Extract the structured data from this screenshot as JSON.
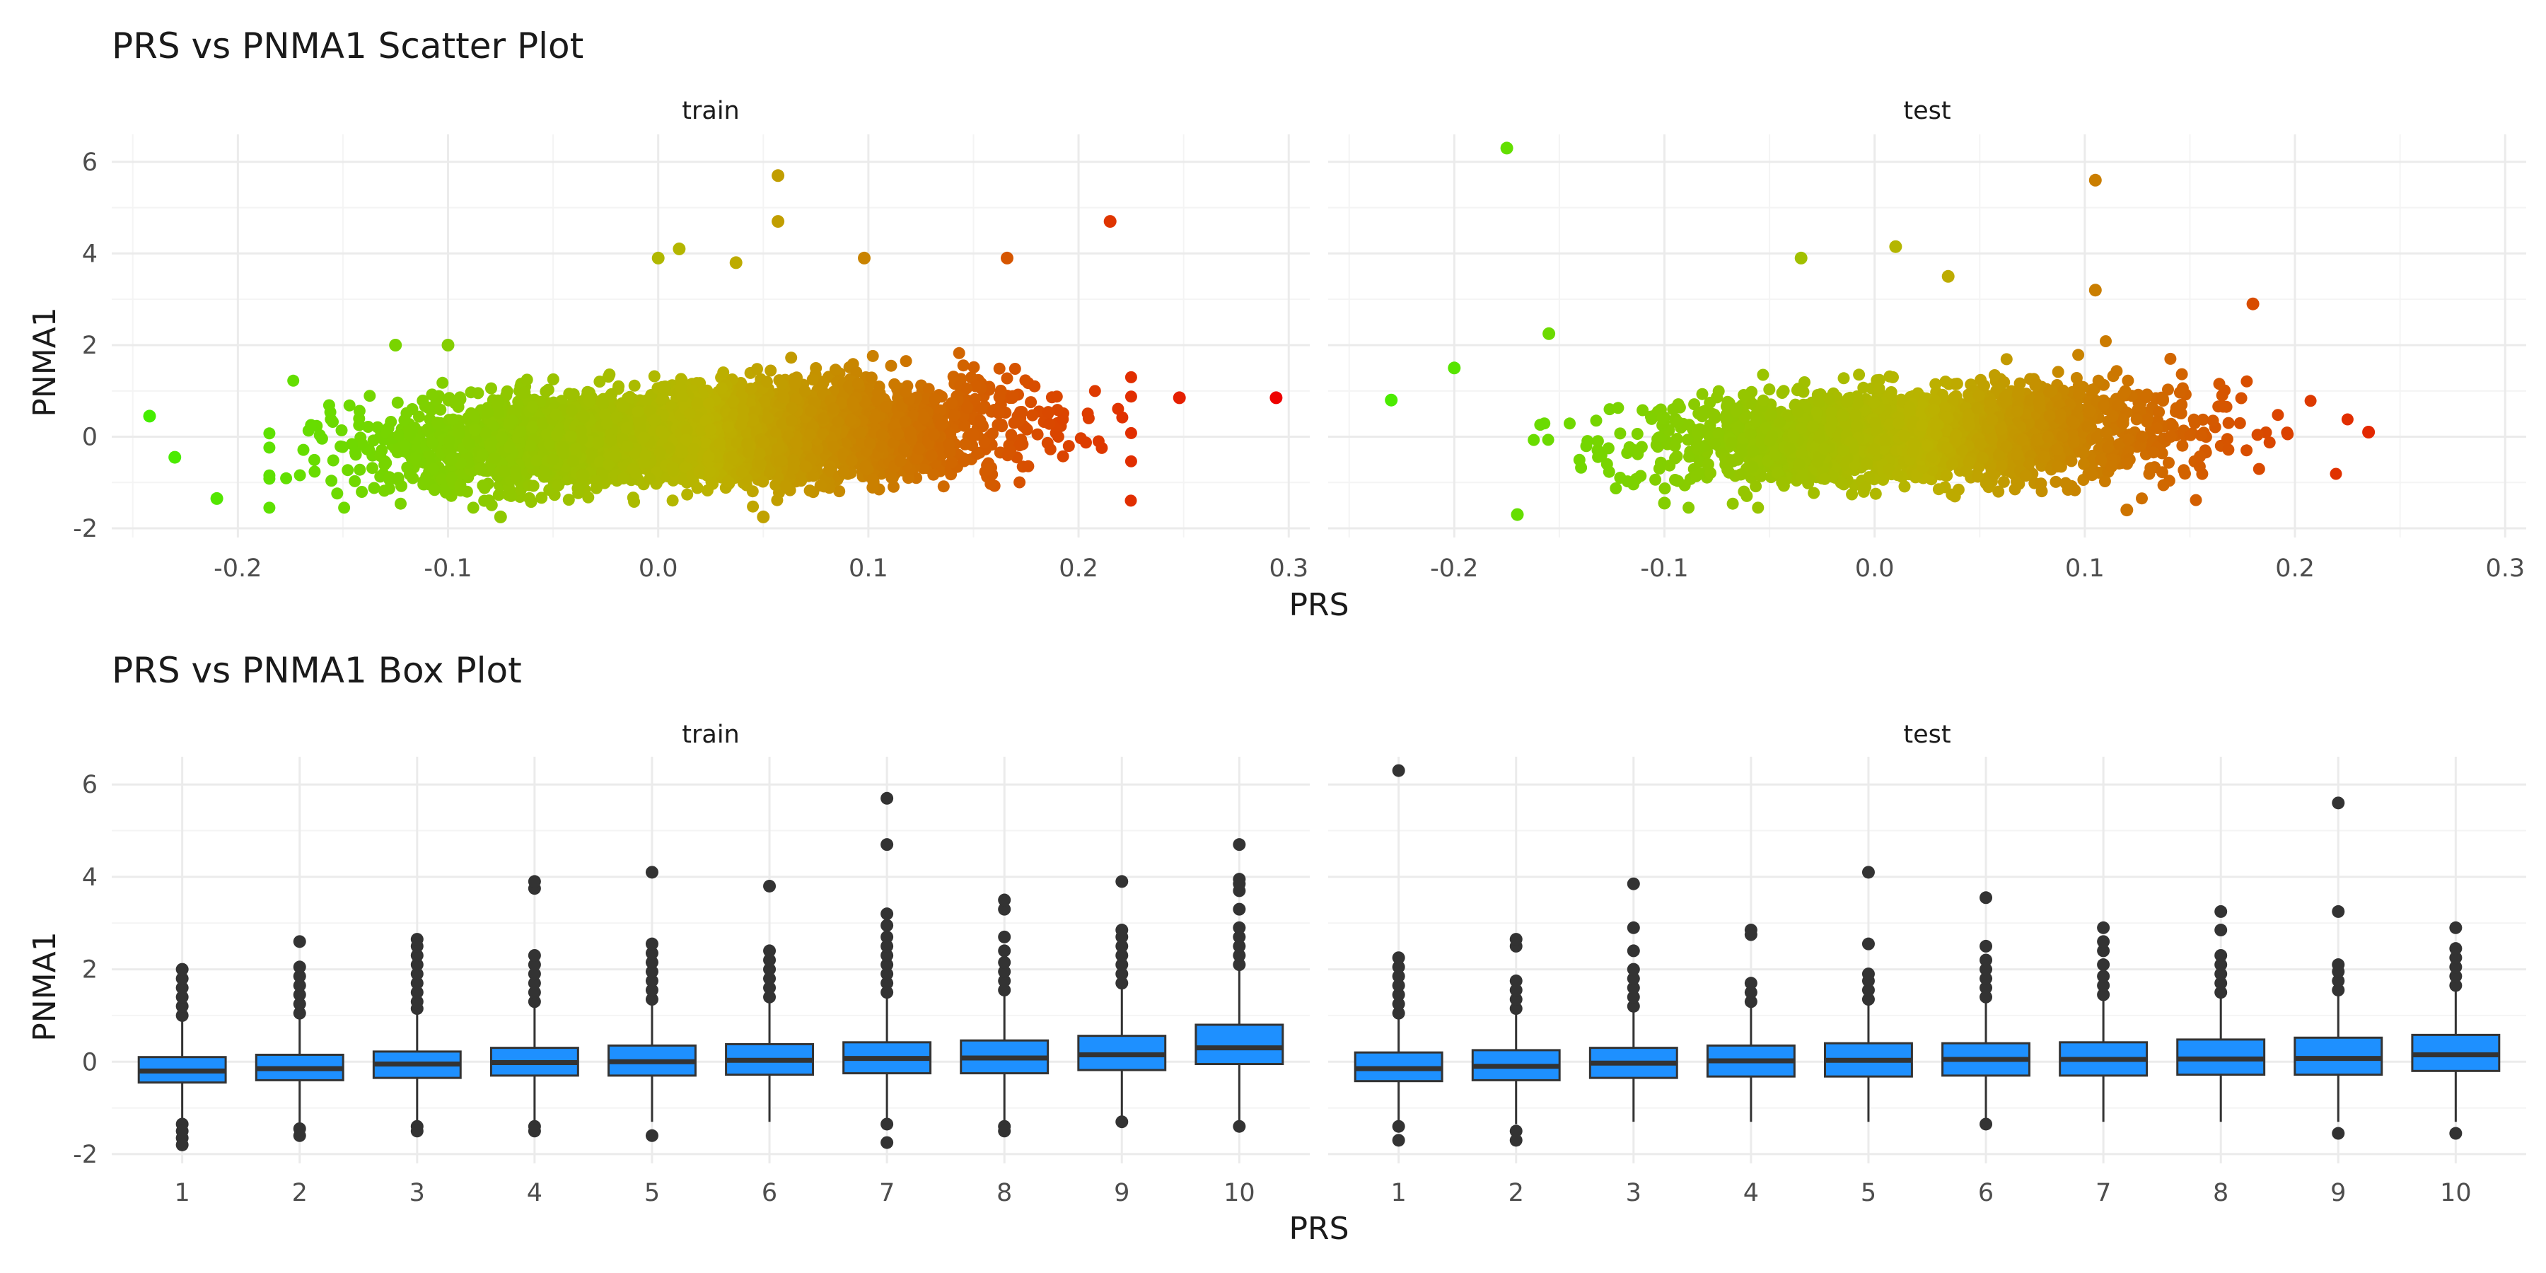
{
  "chart_data": [
    {
      "type": "scatter",
      "title": "PRS vs PNMA1 Scatter Plot",
      "xlabel": "PRS",
      "ylabel": "PNMA1",
      "facets": [
        "train",
        "test"
      ],
      "xlim": [
        -0.26,
        0.31
      ],
      "ylim": [
        -2.2,
        6.6
      ],
      "x_ticks": [
        "-0.2",
        "-0.1",
        "0.0",
        "0.1",
        "0.2",
        "0.3"
      ],
      "y_ticks": [
        "-2",
        "0",
        "2",
        "4",
        "6"
      ],
      "grid": true,
      "legend": "none",
      "color_scale": {
        "low": "#44ee00",
        "mid": "#bbb300",
        "high": "#ee0000",
        "mapped_to": "PRS"
      },
      "notable_points": {
        "train": [
          {
            "x": -0.242,
            "y": 0.45
          },
          {
            "x": -0.23,
            "y": -0.45
          },
          {
            "x": -0.21,
            "y": -1.35
          },
          {
            "x": 0.057,
            "y": 5.7
          },
          {
            "x": 0.057,
            "y": 4.7
          },
          {
            "x": 0.215,
            "y": 4.7
          },
          {
            "x": 0.294,
            "y": 0.85
          },
          {
            "x": 0.248,
            "y": 0.85
          },
          {
            "x": 0.0,
            "y": 3.9
          },
          {
            "x": 0.01,
            "y": 4.1
          },
          {
            "x": 0.098,
            "y": 3.9
          },
          {
            "x": 0.166,
            "y": 3.9
          },
          {
            "x": 0.037,
            "y": 3.8
          },
          {
            "x": -0.125,
            "y": 2.0
          },
          {
            "x": -0.1,
            "y": 2.0
          },
          {
            "x": -0.075,
            "y": -1.75
          },
          {
            "x": 0.05,
            "y": -1.75
          }
        ],
        "test": [
          {
            "x": -0.175,
            "y": 6.3
          },
          {
            "x": 0.105,
            "y": 5.6
          },
          {
            "x": 0.01,
            "y": 4.15
          },
          {
            "x": -0.035,
            "y": 3.9
          },
          {
            "x": 0.035,
            "y": 3.5
          },
          {
            "x": 0.105,
            "y": 3.2
          },
          {
            "x": 0.18,
            "y": 2.9
          },
          {
            "x": -0.23,
            "y": 0.8
          },
          {
            "x": -0.2,
            "y": 1.5
          },
          {
            "x": -0.155,
            "y": 2.25
          },
          {
            "x": 0.235,
            "y": 0.1
          },
          {
            "x": -0.17,
            "y": -1.7
          },
          {
            "x": -0.1,
            "y": -1.45
          },
          {
            "x": 0.12,
            "y": -1.6
          }
        ]
      }
    },
    {
      "type": "box",
      "title": "PRS vs PNMA1 Box Plot",
      "xlabel": "PRS",
      "ylabel": "PNMA1",
      "facets": [
        "train",
        "test"
      ],
      "categories": [
        "1",
        "2",
        "3",
        "4",
        "5",
        "6",
        "7",
        "8",
        "9",
        "10"
      ],
      "ylim": [
        -2.2,
        6.6
      ],
      "y_ticks": [
        "-2",
        "0",
        "2",
        "4",
        "6"
      ],
      "box_color": "#1e90ff",
      "grid": true,
      "legend": "none",
      "series": [
        {
          "facet": "train",
          "boxes": [
            {
              "category": "1",
              "q1": -0.45,
              "median": -0.2,
              "q3": 0.1,
              "wlow": -1.25,
              "whigh": 0.95,
              "outliers_high": [
                1.0,
                1.2,
                1.4,
                1.6,
                1.8,
                2.0
              ],
              "outliers_low": [
                -1.35,
                -1.5,
                -1.65,
                -1.8
              ]
            },
            {
              "category": "2",
              "q1": -0.4,
              "median": -0.15,
              "q3": 0.15,
              "wlow": -1.35,
              "whigh": 1.0,
              "outliers_high": [
                1.05,
                1.25,
                1.45,
                1.65,
                1.85,
                2.05,
                2.6
              ],
              "outliers_low": [
                -1.45,
                -1.6
              ]
            },
            {
              "category": "3",
              "q1": -0.35,
              "median": -0.05,
              "q3": 0.22,
              "wlow": -1.3,
              "whigh": 1.1,
              "outliers_high": [
                1.15,
                1.3,
                1.5,
                1.7,
                1.9,
                2.1,
                2.3,
                2.5,
                2.65
              ],
              "outliers_low": [
                -1.4,
                -1.5
              ]
            },
            {
              "category": "4",
              "q1": -0.3,
              "median": -0.02,
              "q3": 0.3,
              "wlow": -1.3,
              "whigh": 1.2,
              "outliers_high": [
                1.3,
                1.5,
                1.7,
                1.9,
                2.1,
                2.3,
                3.75,
                3.9
              ],
              "outliers_low": [
                -1.4,
                -1.5
              ]
            },
            {
              "category": "5",
              "q1": -0.3,
              "median": 0.0,
              "q3": 0.35,
              "wlow": -1.3,
              "whigh": 1.25,
              "outliers_high": [
                1.35,
                1.55,
                1.75,
                1.95,
                2.15,
                2.35,
                2.55,
                4.1
              ],
              "outliers_low": [
                -1.6
              ]
            },
            {
              "category": "6",
              "q1": -0.28,
              "median": 0.03,
              "q3": 0.38,
              "wlow": -1.3,
              "whigh": 1.3,
              "outliers_high": [
                1.4,
                1.6,
                1.8,
                2.0,
                2.2,
                2.4,
                3.8
              ],
              "outliers_low": []
            },
            {
              "category": "7",
              "q1": -0.25,
              "median": 0.07,
              "q3": 0.42,
              "wlow": -1.25,
              "whigh": 1.4,
              "outliers_high": [
                1.5,
                1.7,
                1.9,
                2.1,
                2.3,
                2.5,
                2.7,
                2.95,
                3.2,
                4.7,
                5.7
              ],
              "outliers_low": [
                -1.35,
                -1.75
              ]
            },
            {
              "category": "8",
              "q1": -0.25,
              "median": 0.08,
              "q3": 0.46,
              "wlow": -1.3,
              "whigh": 1.45,
              "outliers_high": [
                1.55,
                1.75,
                1.95,
                2.15,
                2.4,
                2.7,
                3.3,
                3.5
              ],
              "outliers_low": [
                -1.4,
                -1.5
              ]
            },
            {
              "category": "9",
              "q1": -0.18,
              "median": 0.15,
              "q3": 0.56,
              "wlow": -1.3,
              "whigh": 1.6,
              "outliers_high": [
                1.7,
                1.9,
                2.1,
                2.3,
                2.5,
                2.7,
                2.85,
                3.9
              ],
              "outliers_low": [
                -1.3
              ]
            },
            {
              "category": "10",
              "q1": -0.05,
              "median": 0.3,
              "q3": 0.8,
              "wlow": -1.35,
              "whigh": 2.0,
              "outliers_high": [
                2.1,
                2.3,
                2.5,
                2.7,
                2.9,
                3.3,
                3.7,
                3.85,
                3.95,
                4.7
              ],
              "outliers_low": [
                -1.4
              ]
            }
          ]
        },
        {
          "facet": "test",
          "boxes": [
            {
              "category": "1",
              "q1": -0.42,
              "median": -0.15,
              "q3": 0.2,
              "wlow": -1.3,
              "whigh": 1.0,
              "outliers_high": [
                1.05,
                1.25,
                1.45,
                1.65,
                1.85,
                2.05,
                2.25,
                6.3
              ],
              "outliers_low": [
                -1.4,
                -1.7
              ]
            },
            {
              "category": "2",
              "q1": -0.4,
              "median": -0.1,
              "q3": 0.25,
              "wlow": -1.35,
              "whigh": 1.05,
              "outliers_high": [
                1.15,
                1.35,
                1.55,
                1.75,
                2.5,
                2.65
              ],
              "outliers_low": [
                -1.5,
                -1.7
              ]
            },
            {
              "category": "3",
              "q1": -0.35,
              "median": -0.03,
              "q3": 0.3,
              "wlow": -1.3,
              "whigh": 1.1,
              "outliers_high": [
                1.2,
                1.4,
                1.6,
                1.8,
                2.0,
                2.4,
                2.9,
                3.85
              ],
              "outliers_low": []
            },
            {
              "category": "4",
              "q1": -0.32,
              "median": 0.02,
              "q3": 0.35,
              "wlow": -1.3,
              "whigh": 1.2,
              "outliers_high": [
                1.3,
                1.5,
                1.7,
                2.75,
                2.85
              ],
              "outliers_low": []
            },
            {
              "category": "5",
              "q1": -0.32,
              "median": 0.03,
              "q3": 0.4,
              "wlow": -1.3,
              "whigh": 1.25,
              "outliers_high": [
                1.35,
                1.55,
                1.75,
                1.9,
                2.55,
                4.1
              ],
              "outliers_low": []
            },
            {
              "category": "6",
              "q1": -0.3,
              "median": 0.05,
              "q3": 0.4,
              "wlow": -1.3,
              "whigh": 1.3,
              "outliers_high": [
                1.4,
                1.6,
                1.8,
                2.0,
                2.2,
                2.5,
                3.55
              ],
              "outliers_low": [
                -1.35
              ]
            },
            {
              "category": "7",
              "q1": -0.3,
              "median": 0.05,
              "q3": 0.42,
              "wlow": -1.3,
              "whigh": 1.35,
              "outliers_high": [
                1.45,
                1.65,
                1.85,
                2.1,
                2.4,
                2.6,
                2.9
              ],
              "outliers_low": []
            },
            {
              "category": "8",
              "q1": -0.28,
              "median": 0.06,
              "q3": 0.48,
              "wlow": -1.3,
              "whigh": 1.4,
              "outliers_high": [
                1.5,
                1.7,
                1.9,
                2.1,
                2.3,
                2.85,
                3.25
              ],
              "outliers_low": []
            },
            {
              "category": "9",
              "q1": -0.28,
              "median": 0.07,
              "q3": 0.52,
              "wlow": -1.3,
              "whigh": 1.45,
              "outliers_high": [
                1.55,
                1.75,
                1.95,
                2.1,
                3.25,
                5.6
              ],
              "outliers_low": [
                -1.55
              ]
            },
            {
              "category": "10",
              "q1": -0.2,
              "median": 0.15,
              "q3": 0.58,
              "wlow": -1.3,
              "whigh": 1.55,
              "outliers_high": [
                1.65,
                1.85,
                2.05,
                2.25,
                2.45,
                2.9
              ],
              "outliers_low": [
                -1.55
              ]
            }
          ]
        }
      ]
    }
  ]
}
